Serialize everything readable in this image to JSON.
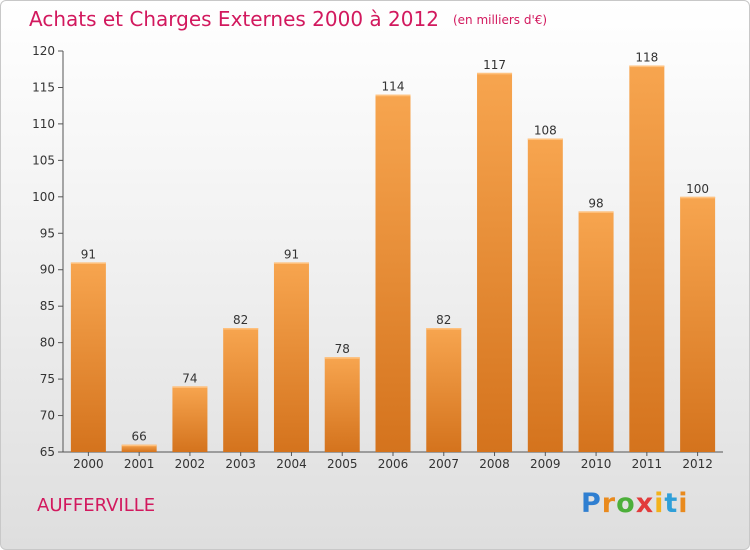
{
  "title": "Achats et Charges Externes 2000 à 2012",
  "unit": "(en milliers d'€)",
  "city": "AUFFERVILLE",
  "logo": {
    "text": "Proxiti",
    "letters": [
      "P",
      "r",
      "o",
      "x",
      "i",
      "t",
      "i"
    ]
  },
  "colors": {
    "title": "#d2195e",
    "bar_light": "#f7a54f",
    "bar_dark": "#d4731d",
    "axis": "#555555"
  },
  "chart_data": {
    "type": "bar",
    "title": "Achats et Charges Externes 2000 à 2012",
    "subtitle": "(en milliers d'€)",
    "categories": [
      "2000",
      "2001",
      "2002",
      "2003",
      "2004",
      "2005",
      "2006",
      "2007",
      "2008",
      "2009",
      "2010",
      "2011",
      "2012"
    ],
    "values": [
      91,
      66,
      74,
      82,
      91,
      78,
      114,
      82,
      117,
      108,
      98,
      118,
      100
    ],
    "value_labels": [
      "91",
      "66",
      "74",
      "82",
      "91",
      "78",
      "114",
      "82",
      "117",
      "108",
      "98",
      "118",
      "100"
    ],
    "yticks": [
      "65",
      "70",
      "75",
      "80",
      "85",
      "90",
      "95",
      "100",
      "105",
      "110",
      "115",
      "120"
    ],
    "ylim": [
      65,
      120
    ],
    "xlabel": "",
    "ylabel": "",
    "grid": false,
    "legend": "none"
  }
}
